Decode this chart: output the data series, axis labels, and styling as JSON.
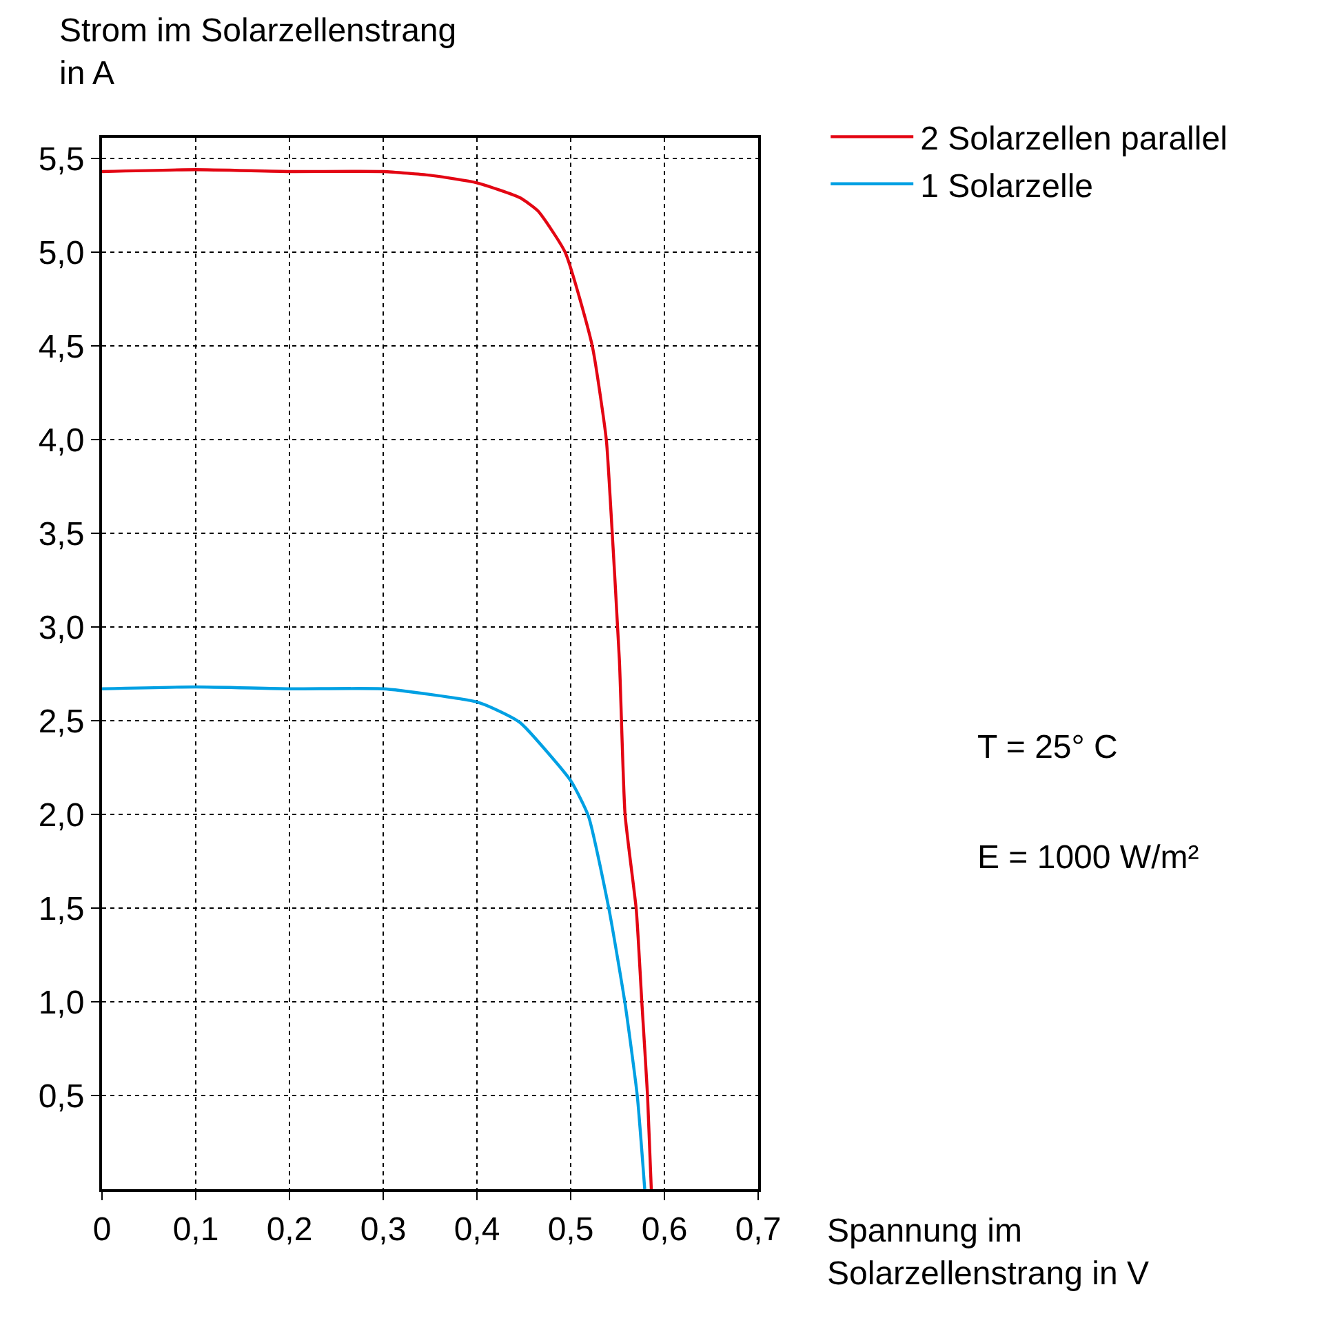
{
  "chart_data": {
    "type": "line",
    "xlabel": "Spannung im Solarzellenstrang in V",
    "ylabel": "Strom im Solarzellenstrang in A",
    "xlim": [
      0,
      0.7
    ],
    "ylim": [
      0,
      5.61
    ],
    "xticks": [
      {
        "value": 0,
        "label": "0"
      },
      {
        "value": 0.1,
        "label": "0,1"
      },
      {
        "value": 0.2,
        "label": "0,2"
      },
      {
        "value": 0.3,
        "label": "0,3"
      },
      {
        "value": 0.4,
        "label": "0,4"
      },
      {
        "value": 0.5,
        "label": "0,5"
      },
      {
        "value": 0.6,
        "label": "0,6"
      },
      {
        "value": 0.7,
        "label": "0,7"
      }
    ],
    "yticks": [
      {
        "value": 0.5,
        "label": "0,5"
      },
      {
        "value": 1,
        "label": "1,0"
      },
      {
        "value": 1.5,
        "label": "1,5"
      },
      {
        "value": 2,
        "label": "2,0"
      },
      {
        "value": 2.5,
        "label": "2,5"
      },
      {
        "value": 3,
        "label": "3,0"
      },
      {
        "value": 3.5,
        "label": "3,5"
      },
      {
        "value": 4,
        "label": "4,0"
      },
      {
        "value": 4.5,
        "label": "4,5"
      },
      {
        "value": 5,
        "label": "5,0"
      },
      {
        "value": 5.5,
        "label": "5,5"
      }
    ],
    "grid": true,
    "legend": "top right",
    "marker": "none",
    "line_style": "solid",
    "annotations": [
      "T = 25° C",
      "E = 1000 W/m²"
    ],
    "series": [
      {
        "name": "2 Solarzellen parallel",
        "color": "#e30613",
        "x": [
          0,
          0.1,
          0.2,
          0.3,
          0.35,
          0.4,
          0.446,
          0.465,
          0.494,
          0.523,
          0.538,
          0.542,
          0.552,
          0.558,
          0.57,
          0.576,
          0.582,
          0.586
        ],
        "values": [
          5.43,
          5.44,
          5.43,
          5.43,
          5.41,
          5.37,
          5.29,
          5.22,
          5.0,
          4.5,
          4.0,
          3.7,
          2.82,
          2.0,
          1.49,
          0.99,
          0.5,
          0
        ]
      },
      {
        "name": "1 Solarzelle",
        "color": "#00a0e3",
        "x": [
          0,
          0.1,
          0.2,
          0.3,
          0.35,
          0.4,
          0.42,
          0.446,
          0.5,
          0.519,
          0.541,
          0.558,
          0.571,
          0.579
        ],
        "values": [
          2.67,
          2.68,
          2.67,
          2.67,
          2.64,
          2.6,
          2.56,
          2.49,
          2.18,
          1.99,
          1.49,
          0.99,
          0.5,
          0
        ]
      }
    ]
  }
}
